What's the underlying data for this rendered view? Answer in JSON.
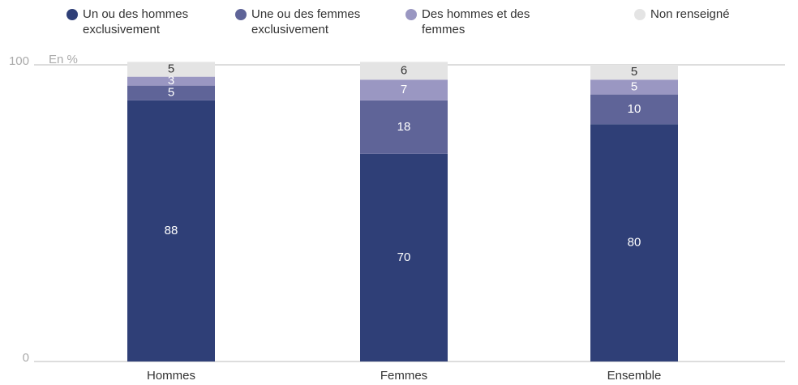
{
  "chart_data": {
    "type": "stacked_bar",
    "ylabel": "En %",
    "categories": [
      "Hommes",
      "Femmes",
      "Ensemble"
    ],
    "series": [
      {
        "name": "Un ou des hommes exclusivement",
        "color": "#2f3f77",
        "values": [
          88,
          70,
          80
        ]
      },
      {
        "name": "Une ou des femmes exclusivement",
        "color": "#5f6498",
        "values": [
          5,
          18,
          10
        ]
      },
      {
        "name": "Des hommes et des femmes",
        "color": "#9a97c2",
        "values": [
          3,
          7,
          5
        ]
      },
      {
        "name": "Non renseigné",
        "color": "#e4e4e4",
        "values": [
          5,
          6,
          5
        ]
      }
    ],
    "ylim": [
      0,
      100
    ],
    "yticks": [
      0,
      100
    ],
    "grid": true,
    "legend": "top"
  }
}
